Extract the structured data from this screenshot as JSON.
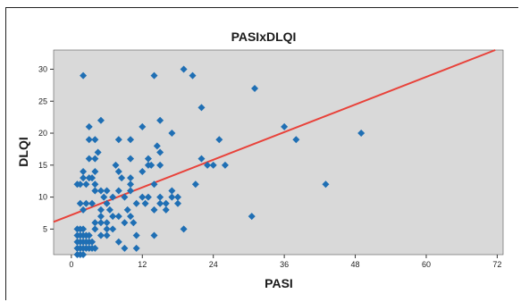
{
  "chart_data": {
    "type": "scatter",
    "title": "PASIxDLQI",
    "xlabel": "PASI",
    "ylabel": "DLQI",
    "xlim": [
      -3,
      73
    ],
    "ylim": [
      1,
      33
    ],
    "xticks": [
      0,
      12,
      24,
      36,
      48,
      60,
      72
    ],
    "yticks": [
      5,
      10,
      15,
      20,
      25,
      30
    ],
    "grid": false,
    "fit_line": {
      "intercept": 7.2,
      "slope": 0.36,
      "color": "#e8423a"
    },
    "colors": {
      "plot_bg": "#d9d9d9",
      "marker": "#1f6fb4",
      "fit_line": "#e8423a"
    },
    "series": [
      {
        "marker": "diamond",
        "points": [
          [
            2,
            29
          ],
          [
            1,
            12
          ],
          [
            1.5,
            12
          ],
          [
            2,
            13
          ],
          [
            2,
            14
          ],
          [
            1.5,
            9
          ],
          [
            2,
            8
          ],
          [
            2.5,
            9
          ],
          [
            2.5,
            12
          ],
          [
            3,
            13
          ],
          [
            3,
            19
          ],
          [
            3,
            16
          ],
          [
            3,
            21
          ],
          [
            3.5,
            13
          ],
          [
            3.5,
            9
          ],
          [
            4,
            19
          ],
          [
            4,
            16
          ],
          [
            4,
            12
          ],
          [
            4,
            11
          ],
          [
            4,
            14
          ],
          [
            4.5,
            17
          ],
          [
            5,
            22
          ],
          [
            5,
            11
          ],
          [
            5,
            8
          ],
          [
            5,
            7
          ],
          [
            5,
            6
          ],
          [
            5,
            4
          ],
          [
            5.5,
            10
          ],
          [
            6,
            11
          ],
          [
            6,
            9
          ],
          [
            6,
            6
          ],
          [
            6,
            5
          ],
          [
            6,
            4
          ],
          [
            6.5,
            8
          ],
          [
            7,
            10
          ],
          [
            7,
            7
          ],
          [
            7,
            5
          ],
          [
            7.5,
            15
          ],
          [
            8,
            19
          ],
          [
            8,
            14
          ],
          [
            8,
            11
          ],
          [
            8,
            7
          ],
          [
            8,
            3
          ],
          [
            8.5,
            13
          ],
          [
            9,
            10
          ],
          [
            9,
            6
          ],
          [
            9,
            2
          ],
          [
            9.5,
            8
          ],
          [
            10,
            19
          ],
          [
            10,
            16
          ],
          [
            10,
            13
          ],
          [
            10,
            12
          ],
          [
            10,
            11
          ],
          [
            10,
            7
          ],
          [
            10.5,
            6
          ],
          [
            11,
            9
          ],
          [
            11,
            4
          ],
          [
            11,
            2
          ],
          [
            12,
            21
          ],
          [
            12,
            14
          ],
          [
            12,
            10
          ],
          [
            12.5,
            9
          ],
          [
            13,
            16
          ],
          [
            13,
            15
          ],
          [
            13,
            10
          ],
          [
            13.5,
            15
          ],
          [
            14,
            29
          ],
          [
            14,
            12
          ],
          [
            14,
            8
          ],
          [
            14,
            4
          ],
          [
            14.5,
            18
          ],
          [
            15,
            22
          ],
          [
            15,
            17
          ],
          [
            15,
            15
          ],
          [
            15,
            10
          ],
          [
            15,
            9
          ],
          [
            16,
            9
          ],
          [
            16,
            8
          ],
          [
            17,
            20
          ],
          [
            17,
            11
          ],
          [
            17,
            10
          ],
          [
            18,
            10
          ],
          [
            18,
            9
          ],
          [
            19,
            30
          ],
          [
            19,
            5
          ],
          [
            20.5,
            29
          ],
          [
            21,
            12
          ],
          [
            22,
            24
          ],
          [
            22,
            16
          ],
          [
            23,
            15
          ],
          [
            24,
            15
          ],
          [
            25,
            19
          ],
          [
            26,
            15
          ],
          [
            30.5,
            7
          ],
          [
            31,
            27
          ],
          [
            36,
            21
          ],
          [
            38,
            19
          ],
          [
            43,
            12
          ],
          [
            49,
            20
          ],
          [
            1,
            1
          ],
          [
            1,
            2
          ],
          [
            1,
            3
          ],
          [
            1,
            4
          ],
          [
            1,
            5
          ],
          [
            1.5,
            1
          ],
          [
            1.5,
            2
          ],
          [
            1.5,
            3
          ],
          [
            1.5,
            4
          ],
          [
            1.5,
            5
          ],
          [
            2,
            1
          ],
          [
            2,
            2
          ],
          [
            2,
            3
          ],
          [
            2,
            4
          ],
          [
            2,
            5
          ],
          [
            2.5,
            2
          ],
          [
            2.5,
            3
          ],
          [
            2.5,
            4
          ],
          [
            3,
            2
          ],
          [
            3,
            3
          ],
          [
            3,
            4
          ],
          [
            3.5,
            2
          ],
          [
            3.5,
            3
          ],
          [
            4,
            2
          ],
          [
            4,
            5
          ],
          [
            4,
            6
          ]
        ]
      }
    ]
  }
}
